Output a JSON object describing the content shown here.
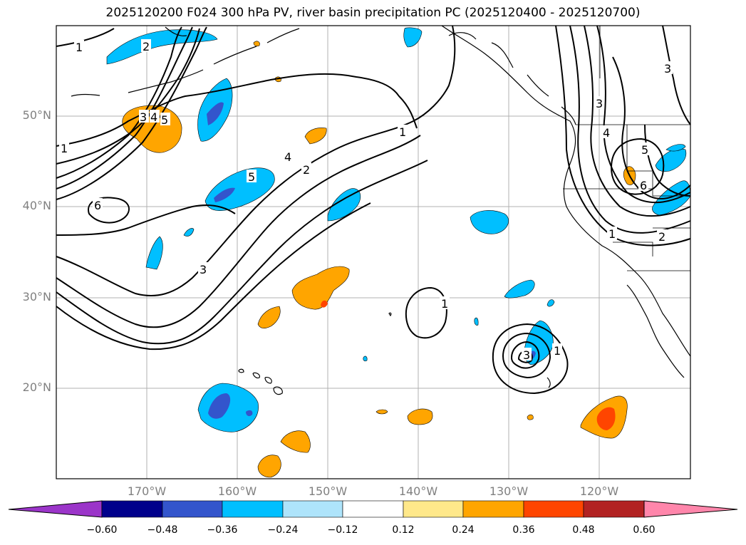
{
  "title": "2025120200 F024 300 hPa PV, river basin precipitation PC (2025120400 - 2025120700)",
  "lat_labels": [
    "50°N",
    "40°N",
    "30°N",
    "20°N"
  ],
  "lon_labels": [
    "170°W",
    "160°W",
    "150°W",
    "140°W",
    "130°W",
    "120°W"
  ],
  "contour_labels": [
    "1",
    "2",
    "3",
    "4",
    "5",
    "6"
  ],
  "colorbar": {
    "ticks": [
      "−0.60",
      "−0.48",
      "−0.36",
      "−0.24",
      "−0.12",
      "0.12",
      "0.24",
      "0.36",
      "0.48",
      "0.60"
    ],
    "colors": [
      "#9b35c9",
      "#00008b",
      "#3355cc",
      "#00bfff",
      "#aee4fb",
      "#ffffff",
      "#ffe88a",
      "#ffa500",
      "#ff4500",
      "#b22222",
      "#ff86ab"
    ]
  },
  "colors": {
    "neg_strong": "#3355cc",
    "neg": "#00bfff",
    "pos": "#ffa500",
    "pos_strong": "#ff4500",
    "grid": "#b0b0b0",
    "contour": "#000000"
  }
}
